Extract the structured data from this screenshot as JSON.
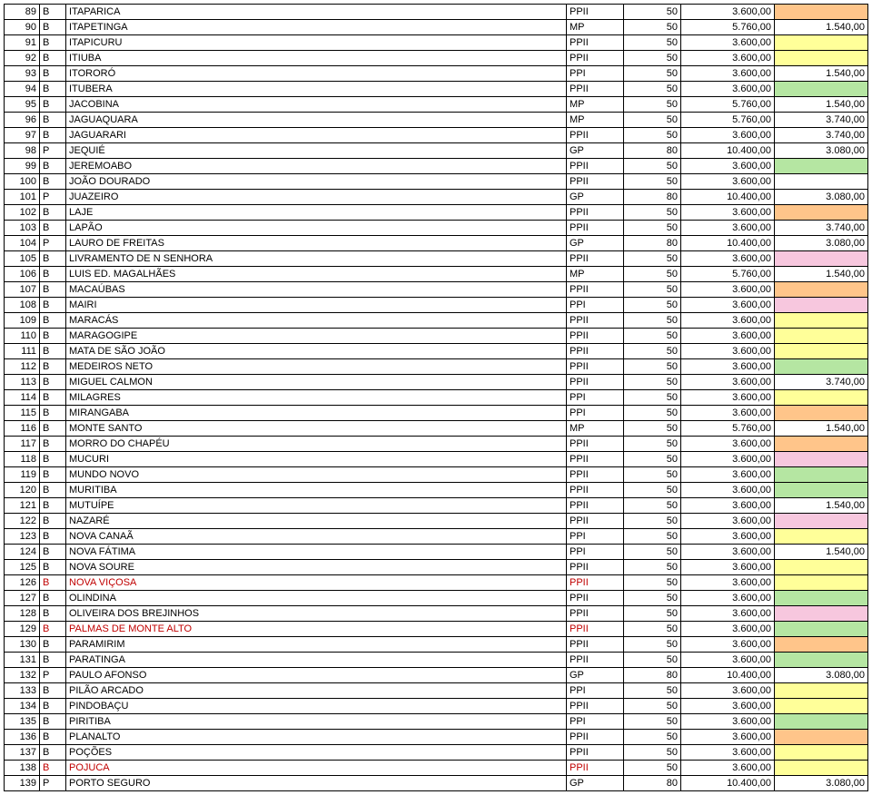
{
  "hl_colors": {
    "none": "#ffffff",
    "orange": "#ffc58a",
    "yellow": "#ffff99",
    "green": "#b5e6a2",
    "pink": "#f7c7de"
  },
  "rows": [
    {
      "n": "89",
      "f": "B",
      "name": "ITAPARICA",
      "t": "PPII",
      "q": "50",
      "v1": "3.600,00",
      "v2": "",
      "hl": "orange"
    },
    {
      "n": "90",
      "f": "B",
      "name": "ITAPETINGA",
      "t": "MP",
      "q": "50",
      "v1": "5.760,00",
      "v2": "1.540,00",
      "hl": "none"
    },
    {
      "n": "91",
      "f": "B",
      "name": "ITAPICURU",
      "t": "PPII",
      "q": "50",
      "v1": "3.600,00",
      "v2": "",
      "hl": "yellow"
    },
    {
      "n": "92",
      "f": "B",
      "name": "ITIUBA",
      "t": "PPII",
      "q": "50",
      "v1": "3.600,00",
      "v2": "",
      "hl": "yellow"
    },
    {
      "n": "93",
      "f": "B",
      "name": "ITORORÓ",
      "t": "PPI",
      "q": "50",
      "v1": "3.600,00",
      "v2": "1.540,00",
      "hl": "none"
    },
    {
      "n": "94",
      "f": "B",
      "name": "ITUBERA",
      "t": "PPII",
      "q": "50",
      "v1": "3.600,00",
      "v2": "",
      "hl": "green"
    },
    {
      "n": "95",
      "f": "B",
      "name": "JACOBINA",
      "t": "MP",
      "q": "50",
      "v1": "5.760,00",
      "v2": "1.540,00",
      "hl": "none"
    },
    {
      "n": "96",
      "f": "B",
      "name": "JAGUAQUARA",
      "t": "MP",
      "q": "50",
      "v1": "5.760,00",
      "v2": "3.740,00",
      "hl": "none"
    },
    {
      "n": "97",
      "f": "B",
      "name": "JAGUARARI",
      "t": "PPII",
      "q": "50",
      "v1": "3.600,00",
      "v2": "3.740,00",
      "hl": "none"
    },
    {
      "n": "98",
      "f": "P",
      "name": "JEQUIÉ",
      "t": "GP",
      "q": "80",
      "v1": "10.400,00",
      "v2": "3.080,00",
      "hl": "none"
    },
    {
      "n": "99",
      "f": "B",
      "name": "JEREMOABO",
      "t": "PPII",
      "q": "50",
      "v1": "3.600,00",
      "v2": "",
      "hl": "green"
    },
    {
      "n": "100",
      "f": "B",
      "name": "JOÃO DOURADO",
      "t": "PPII",
      "q": "50",
      "v1": "3.600,00",
      "v2": "",
      "hl": "none"
    },
    {
      "n": "101",
      "f": "P",
      "name": "JUAZEIRO",
      "t": "GP",
      "q": "80",
      "v1": "10.400,00",
      "v2": "3.080,00",
      "hl": "none"
    },
    {
      "n": "102",
      "f": "B",
      "name": "LAJE",
      "t": "PPII",
      "q": "50",
      "v1": "3.600,00",
      "v2": "",
      "hl": "orange"
    },
    {
      "n": "103",
      "f": "B",
      "name": "LAPÃO",
      "t": "PPII",
      "q": "50",
      "v1": "3.600,00",
      "v2": "3.740,00",
      "hl": "none"
    },
    {
      "n": "104",
      "f": "P",
      "name": "LAURO DE FREITAS",
      "t": "GP",
      "q": "80",
      "v1": "10.400,00",
      "v2": "3.080,00",
      "hl": "none"
    },
    {
      "n": "105",
      "f": "B",
      "name": "LIVRAMENTO DE N SENHORA",
      "t": "PPII",
      "q": "50",
      "v1": "3.600,00",
      "v2": "",
      "hl": "pink"
    },
    {
      "n": "106",
      "f": "B",
      "name": "LUIS ED. MAGALHÃES",
      "t": "MP",
      "q": "50",
      "v1": "5.760,00",
      "v2": "1.540,00",
      "hl": "none"
    },
    {
      "n": "107",
      "f": "B",
      "name": "MACAÚBAS",
      "t": "PPII",
      "q": "50",
      "v1": "3.600,00",
      "v2": "",
      "hl": "orange"
    },
    {
      "n": "108",
      "f": "B",
      "name": "MAIRI",
      "t": "PPI",
      "q": "50",
      "v1": "3.600,00",
      "v2": "",
      "hl": "pink"
    },
    {
      "n": "109",
      "f": "B",
      "name": "MARACÁS",
      "t": "PPII",
      "q": "50",
      "v1": "3.600,00",
      "v2": "",
      "hl": "yellow"
    },
    {
      "n": "110",
      "f": "B",
      "name": "MARAGOGIPE",
      "t": "PPII",
      "q": "50",
      "v1": "3.600,00",
      "v2": "",
      "hl": "yellow"
    },
    {
      "n": "111",
      "f": "B",
      "name": "MATA DE SÃO JOÃO",
      "t": "PPII",
      "q": "50",
      "v1": "3.600,00",
      "v2": "",
      "hl": "yellow"
    },
    {
      "n": "112",
      "f": "B",
      "name": "MEDEIROS NETO",
      "t": "PPII",
      "q": "50",
      "v1": "3.600,00",
      "v2": "",
      "hl": "green"
    },
    {
      "n": "113",
      "f": "B",
      "name": "MIGUEL CALMON",
      "t": "PPII",
      "q": "50",
      "v1": "3.600,00",
      "v2": "3.740,00",
      "hl": "none"
    },
    {
      "n": "114",
      "f": "B",
      "name": "MILAGRES",
      "t": "PPI",
      "q": "50",
      "v1": "3.600,00",
      "v2": "",
      "hl": "yellow"
    },
    {
      "n": "115",
      "f": "B",
      "name": "MIRANGABA",
      "t": "PPI",
      "q": "50",
      "v1": "3.600,00",
      "v2": "",
      "hl": "orange"
    },
    {
      "n": "116",
      "f": "B",
      "name": "MONTE SANTO",
      "t": "MP",
      "q": "50",
      "v1": "5.760,00",
      "v2": "1.540,00",
      "hl": "none"
    },
    {
      "n": "117",
      "f": "B",
      "name": "MORRO DO CHAPÉU",
      "t": "PPII",
      "q": "50",
      "v1": "3.600,00",
      "v2": "",
      "hl": "orange"
    },
    {
      "n": "118",
      "f": "B",
      "name": "MUCURI",
      "t": "PPII",
      "q": "50",
      "v1": "3.600,00",
      "v2": "",
      "hl": "pink"
    },
    {
      "n": "119",
      "f": "B",
      "name": "MUNDO NOVO",
      "t": "PPII",
      "q": "50",
      "v1": "3.600,00",
      "v2": "",
      "hl": "green"
    },
    {
      "n": "120",
      "f": "B",
      "name": "MURITIBA",
      "t": "PPII",
      "q": "50",
      "v1": "3.600,00",
      "v2": "",
      "hl": "green"
    },
    {
      "n": "121",
      "f": "B",
      "name": "MUTUÍPE",
      "t": "PPII",
      "q": "50",
      "v1": "3.600,00",
      "v2": "1.540,00",
      "hl": "none"
    },
    {
      "n": "122",
      "f": "B",
      "name": "NAZARÉ",
      "t": "PPII",
      "q": "50",
      "v1": "3.600,00",
      "v2": "",
      "hl": "pink"
    },
    {
      "n": "123",
      "f": "B",
      "name": "NOVA CANAÃ",
      "t": "PPI",
      "q": "50",
      "v1": "3.600,00",
      "v2": "",
      "hl": "yellow"
    },
    {
      "n": "124",
      "f": "B",
      "name": "NOVA FÁTIMA",
      "t": "PPI",
      "q": "50",
      "v1": "3.600,00",
      "v2": "1.540,00",
      "hl": "none"
    },
    {
      "n": "125",
      "f": "B",
      "name": "NOVA SOURE",
      "t": "PPII",
      "q": "50",
      "v1": "3.600,00",
      "v2": "",
      "hl": "yellow"
    },
    {
      "n": "126",
      "f": "B",
      "name": "NOVA VIÇOSA",
      "t": "PPII",
      "q": "50",
      "v1": "3.600,00",
      "v2": "",
      "hl": "yellow",
      "red": true
    },
    {
      "n": "127",
      "f": "B",
      "name": "OLINDINA",
      "t": "PPII",
      "q": "50",
      "v1": "3.600,00",
      "v2": "",
      "hl": "green"
    },
    {
      "n": "128",
      "f": "B",
      "name": "OLIVEIRA DOS BREJINHOS",
      "t": "PPII",
      "q": "50",
      "v1": "3.600,00",
      "v2": "",
      "hl": "pink"
    },
    {
      "n": "129",
      "f": "B",
      "name": "PALMAS DE MONTE ALTO",
      "t": "PPII",
      "q": "50",
      "v1": "3.600,00",
      "v2": "",
      "hl": "green",
      "red": true
    },
    {
      "n": "130",
      "f": "B",
      "name": "PARAMIRIM",
      "t": "PPII",
      "q": "50",
      "v1": "3.600,00",
      "v2": "",
      "hl": "orange"
    },
    {
      "n": "131",
      "f": "B",
      "name": "PARATINGA",
      "t": "PPII",
      "q": "50",
      "v1": "3.600,00",
      "v2": "",
      "hl": "green"
    },
    {
      "n": "132",
      "f": "P",
      "name": "PAULO AFONSO",
      "t": "GP",
      "q": "80",
      "v1": "10.400,00",
      "v2": "3.080,00",
      "hl": "none"
    },
    {
      "n": "133",
      "f": "B",
      "name": "PILÃO ARCADO",
      "t": "PPI",
      "q": "50",
      "v1": "3.600,00",
      "v2": "",
      "hl": "yellow"
    },
    {
      "n": "134",
      "f": "B",
      "name": "PINDOBAÇU",
      "t": "PPII",
      "q": "50",
      "v1": "3.600,00",
      "v2": "",
      "hl": "yellow"
    },
    {
      "n": "135",
      "f": "B",
      "name": "PIRITIBA",
      "t": "PPI",
      "q": "50",
      "v1": "3.600,00",
      "v2": "",
      "hl": "green"
    },
    {
      "n": "136",
      "f": "B",
      "name": "PLANALTO",
      "t": "PPII",
      "q": "50",
      "v1": "3.600,00",
      "v2": "",
      "hl": "orange"
    },
    {
      "n": "137",
      "f": "B",
      "name": "POÇÕES",
      "t": "PPII",
      "q": "50",
      "v1": "3.600,00",
      "v2": "",
      "hl": "yellow"
    },
    {
      "n": "138",
      "f": "B",
      "name": "POJUCA",
      "t": "PPII",
      "q": "50",
      "v1": "3.600,00",
      "v2": "",
      "hl": "yellow",
      "red": true
    },
    {
      "n": "139",
      "f": "P",
      "name": "PORTO SEGURO",
      "t": "GP",
      "q": "80",
      "v1": "10.400,00",
      "v2": "3.080,00",
      "hl": "none"
    }
  ]
}
